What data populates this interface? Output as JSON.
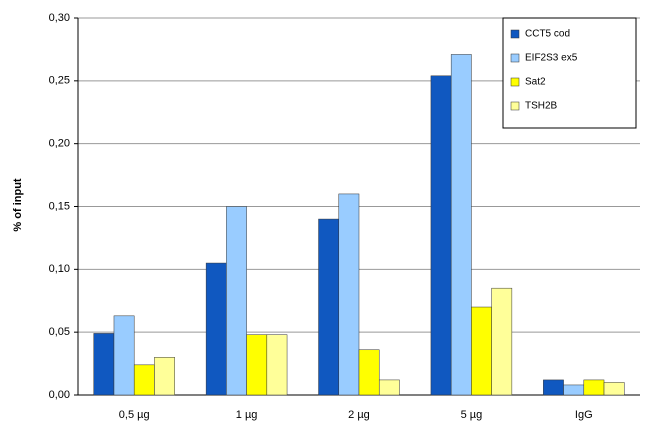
{
  "chart_data": {
    "type": "bar",
    "y_label": "% of input",
    "categories": [
      "0,5 µg",
      "1 µg",
      "2 µg",
      "5 µg",
      "IgG"
    ],
    "series": [
      {
        "name": "CCT5 cod",
        "color": "#1058c0",
        "values": [
          0.049,
          0.105,
          0.14,
          0.254,
          0.012
        ]
      },
      {
        "name": "EIF2S3 ex5",
        "color": "#99ccff",
        "values": [
          0.063,
          0.15,
          0.16,
          0.271,
          0.008
        ]
      },
      {
        "name": "Sat2",
        "color": "#ffff00",
        "values": [
          0.024,
          0.048,
          0.036,
          0.07,
          0.012
        ]
      },
      {
        "name": "TSH2B",
        "color": "#ffff99",
        "values": [
          0.03,
          0.048,
          0.012,
          0.085,
          0.01
        ]
      }
    ],
    "ylim": [
      0,
      0.3
    ],
    "yticks": [
      {
        "value": 0,
        "label": "0,00"
      },
      {
        "value": 0.05,
        "label": "0,05"
      },
      {
        "value": 0.1,
        "label": "0,10"
      },
      {
        "value": 0.15,
        "label": "0,15"
      },
      {
        "value": 0.2,
        "label": "0,20"
      },
      {
        "value": 0.25,
        "label": "0,25"
      },
      {
        "value": 0.3,
        "label": "0,30"
      }
    ],
    "grid": true,
    "legend": "top-right"
  }
}
